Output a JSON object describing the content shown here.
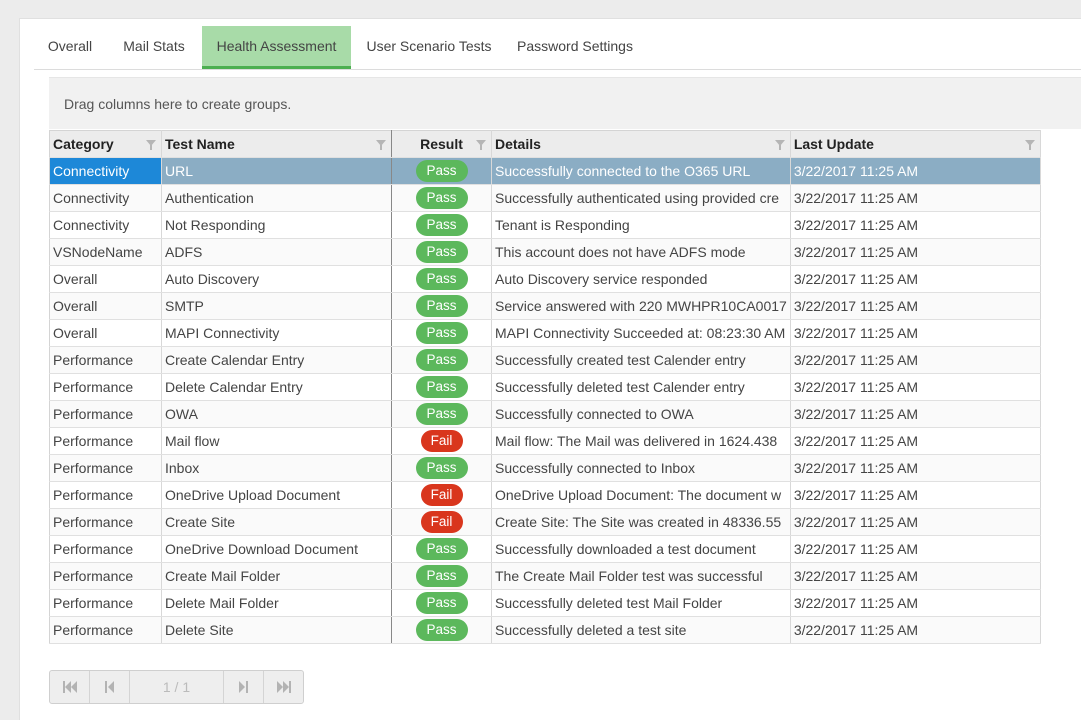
{
  "tabs": [
    {
      "label": "Overall"
    },
    {
      "label": "Mail Stats"
    },
    {
      "label": "Health Assessment",
      "active": true
    },
    {
      "label": "User Scenario Tests"
    },
    {
      "label": "Password Settings"
    }
  ],
  "group_bar": {
    "text": "Drag columns here to create groups."
  },
  "columns": {
    "category": "Category",
    "test_name": "Test Name",
    "result": "Result",
    "details": "Details",
    "last_update": "Last Update"
  },
  "rows": [
    {
      "category": "Connectivity",
      "test_name": "URL",
      "result": "Pass",
      "details": "Successfully connected to the O365 URL",
      "last_update": "3/22/2017 11:25 AM"
    },
    {
      "category": "Connectivity",
      "test_name": "Authentication",
      "result": "Pass",
      "details": "Successfully authenticated using provided cre",
      "last_update": "3/22/2017 11:25 AM"
    },
    {
      "category": "Connectivity",
      "test_name": "Not Responding",
      "result": "Pass",
      "details": "Tenant is Responding",
      "last_update": "3/22/2017 11:25 AM"
    },
    {
      "category": "VSNodeName",
      "test_name": "ADFS",
      "result": "Pass",
      "details": "This account does not have ADFS mode",
      "last_update": "3/22/2017 11:25 AM"
    },
    {
      "category": "Overall",
      "test_name": "Auto Discovery",
      "result": "Pass",
      "details": "Auto Discovery service responded",
      "last_update": "3/22/2017 11:25 AM"
    },
    {
      "category": "Overall",
      "test_name": "SMTP",
      "result": "Pass",
      "details": "Service answered with 220 MWHPR10CA0017",
      "last_update": "3/22/2017 11:25 AM"
    },
    {
      "category": "Overall",
      "test_name": "MAPI Connectivity",
      "result": "Pass",
      "details": "MAPI Connectivity Succeeded at: 08:23:30 AM",
      "last_update": "3/22/2017 11:25 AM"
    },
    {
      "category": "Performance",
      "test_name": "Create Calendar Entry",
      "result": "Pass",
      "details": "Successfully created test Calender entry",
      "last_update": "3/22/2017 11:25 AM"
    },
    {
      "category": "Performance",
      "test_name": "Delete Calendar Entry",
      "result": "Pass",
      "details": "Successfully deleted test Calender entry",
      "last_update": "3/22/2017 11:25 AM"
    },
    {
      "category": "Performance",
      "test_name": "OWA",
      "result": "Pass",
      "details": "Successfully connected to OWA",
      "last_update": "3/22/2017 11:25 AM"
    },
    {
      "category": "Performance",
      "test_name": "Mail flow",
      "result": "Fail",
      "details": "Mail flow: The Mail was delivered in 1624.438",
      "last_update": "3/22/2017 11:25 AM"
    },
    {
      "category": "Performance",
      "test_name": "Inbox",
      "result": "Pass",
      "details": "Successfully connected to Inbox",
      "last_update": "3/22/2017 11:25 AM"
    },
    {
      "category": "Performance",
      "test_name": "OneDrive Upload Document",
      "result": "Fail",
      "details": "OneDrive Upload Document: The document w",
      "last_update": "3/22/2017 11:25 AM"
    },
    {
      "category": "Performance",
      "test_name": "Create Site",
      "result": "Fail",
      "details": "Create Site: The Site was created in 48336.55",
      "last_update": "3/22/2017 11:25 AM"
    },
    {
      "category": "Performance",
      "test_name": "OneDrive Download Document",
      "result": "Pass",
      "details": "Successfully downloaded a test document",
      "last_update": "3/22/2017 11:25 AM"
    },
    {
      "category": "Performance",
      "test_name": "Create Mail Folder",
      "result": "Pass",
      "details": "The Create Mail Folder test was successful",
      "last_update": "3/22/2017 11:25 AM"
    },
    {
      "category": "Performance",
      "test_name": "Delete Mail Folder",
      "result": "Pass",
      "details": "Successfully deleted test Mail Folder",
      "last_update": "3/22/2017 11:25 AM"
    },
    {
      "category": "Performance",
      "test_name": "Delete Site",
      "result": "Pass",
      "details": "Successfully deleted a test site",
      "last_update": "3/22/2017 11:25 AM"
    }
  ],
  "pager": {
    "info": "1 / 1"
  },
  "colors": {
    "pass": "#5cb85c",
    "fail": "#d9361d",
    "active_tab": "#a8dba8",
    "selected_row": "#8badc4",
    "selected_cell": "#1d88d8"
  }
}
